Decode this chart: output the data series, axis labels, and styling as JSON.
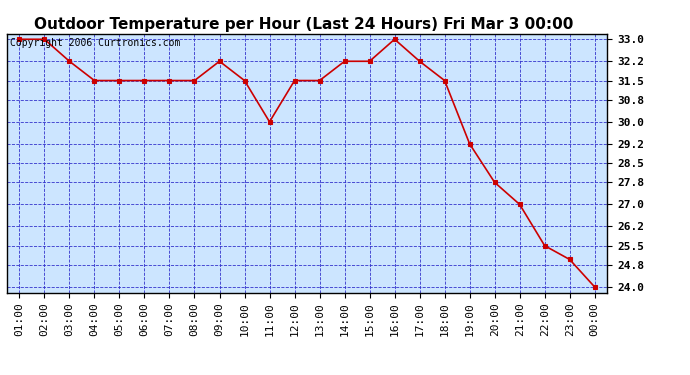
{
  "title": "Outdoor Temperature per Hour (Last 24 Hours) Fri Mar 3 00:00",
  "copyright": "Copyright 2006 Curtronics.com",
  "x_labels": [
    "01:00",
    "02:00",
    "03:00",
    "04:00",
    "05:00",
    "06:00",
    "07:00",
    "08:00",
    "09:00",
    "10:00",
    "11:00",
    "12:00",
    "13:00",
    "14:00",
    "15:00",
    "16:00",
    "17:00",
    "18:00",
    "19:00",
    "20:00",
    "21:00",
    "22:00",
    "23:00",
    "00:00"
  ],
  "y_values": [
    33.0,
    33.0,
    32.2,
    31.5,
    31.5,
    31.5,
    31.5,
    31.5,
    32.2,
    31.5,
    30.0,
    31.5,
    31.5,
    32.2,
    32.2,
    33.0,
    32.2,
    31.5,
    29.2,
    27.8,
    27.0,
    25.5,
    25.0,
    24.0
  ],
  "y_ticks": [
    24.0,
    24.8,
    25.5,
    26.2,
    27.0,
    27.8,
    28.5,
    29.2,
    30.0,
    30.8,
    31.5,
    32.2,
    33.0
  ],
  "ylim": [
    23.8,
    33.2
  ],
  "line_color": "#cc0000",
  "marker_color": "#cc0000",
  "plot_bg_color": "#cce5ff",
  "outer_bg_color": "#ffffff",
  "grid_color": "#3333cc",
  "title_fontsize": 11,
  "copyright_fontsize": 7,
  "tick_fontsize": 8,
  "title_bg_color": "#ffffff"
}
